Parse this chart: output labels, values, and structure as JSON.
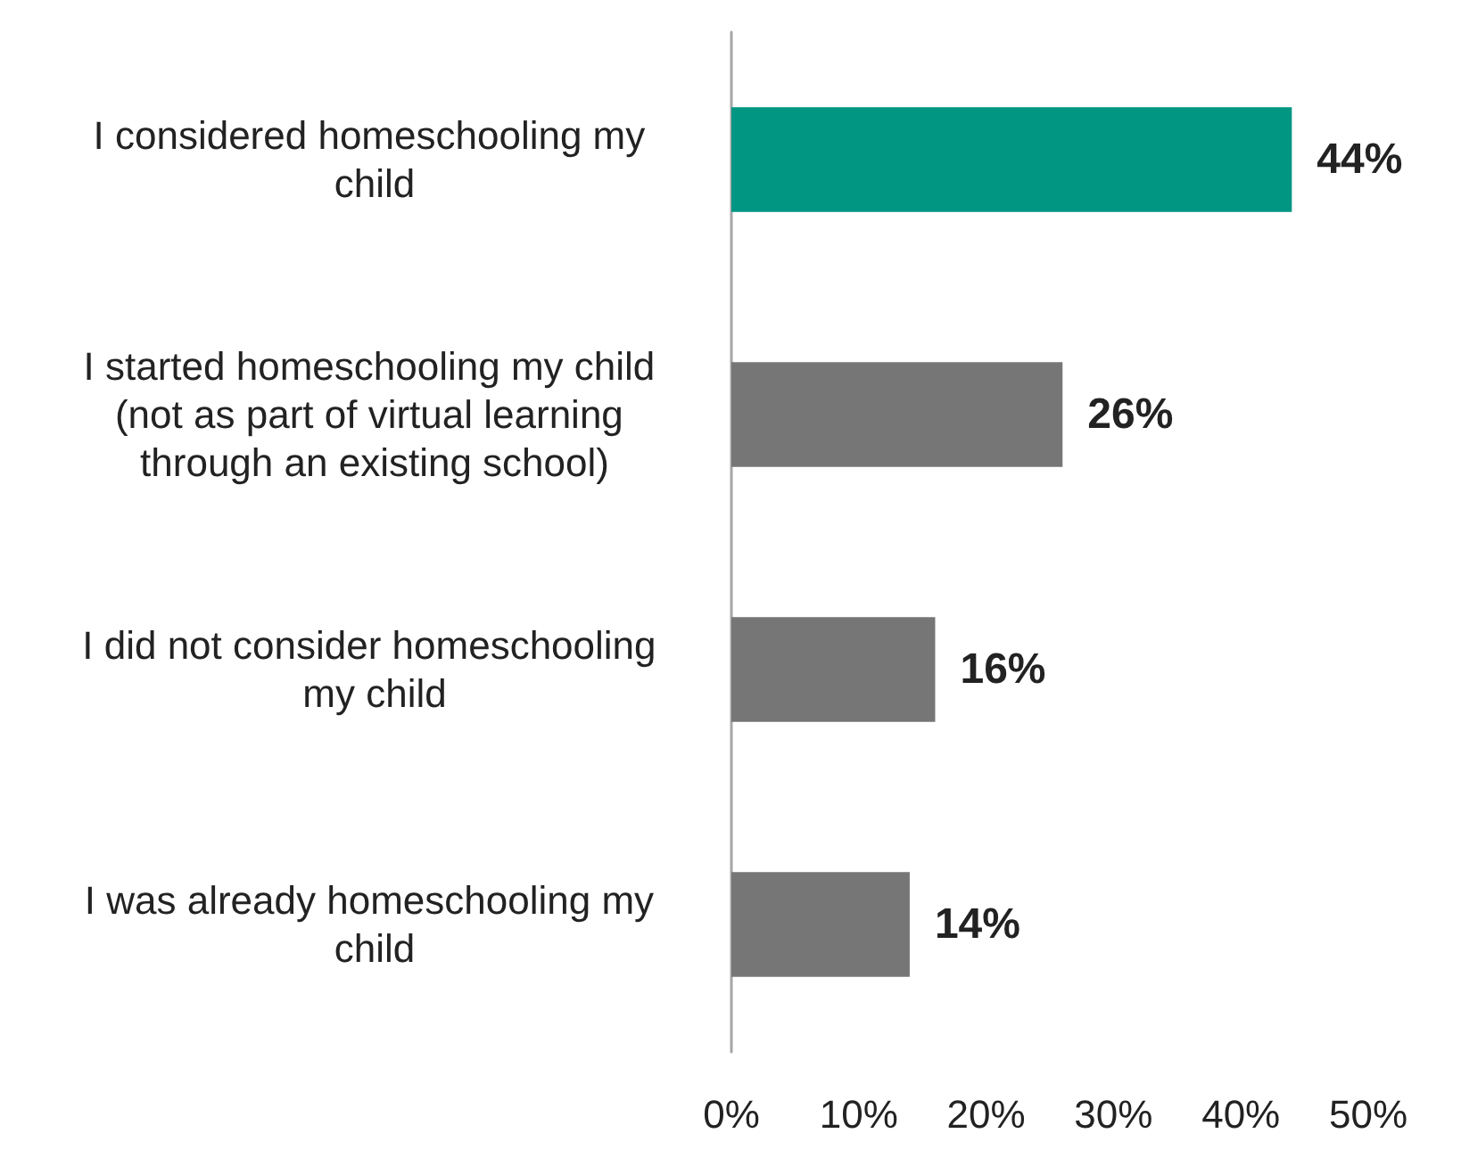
{
  "chart_data": {
    "type": "bar",
    "orientation": "horizontal",
    "categories": [
      "I considered homeschooling my child",
      "I started homeschooling my child (not as part of virtual learning through an existing school)",
      "I did not consider homeschooling my child",
      "I was already homeschooling my child"
    ],
    "values": [
      44,
      26,
      16,
      14
    ],
    "colors": [
      "#009682",
      "#767676",
      "#767676",
      "#767676"
    ],
    "value_labels": [
      "44%",
      "26%",
      "16%",
      "14%"
    ],
    "xlim": [
      0,
      50
    ],
    "xticks": [
      {
        "value": 0,
        "label": "0%"
      },
      {
        "value": 10,
        "label": "10%"
      },
      {
        "value": 20,
        "label": "20%"
      },
      {
        "value": 30,
        "label": "30%"
      },
      {
        "value": 40,
        "label": "40%"
      },
      {
        "value": 50,
        "label": "50%"
      }
    ],
    "grid": false
  }
}
